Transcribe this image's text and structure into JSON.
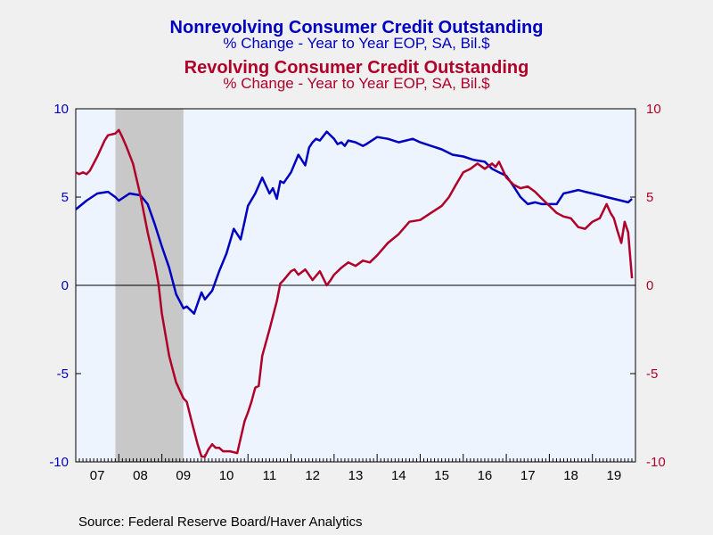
{
  "titles": {
    "series1_title": "Nonrevolving Consumer Credit Outstanding",
    "series1_subtitle": "% Change - Year to Year     EOP, SA, Bil.$",
    "series2_title": "Revolving Consumer Credit Outstanding",
    "series2_subtitle": "% Change - Year to Year     EOP, SA, Bil.$"
  },
  "source": "Source:  Federal Reserve Board/Haver Analytics",
  "colors": {
    "nonrevolving": "#0000c0",
    "revolving": "#b0002a",
    "plot_background": "#eef4fd",
    "recession": "#c8c8c8"
  },
  "chart_data": {
    "type": "line",
    "x_range": [
      2007.0,
      2020.0
    ],
    "ylim": [
      -10,
      10
    ],
    "yticks": [
      10,
      5,
      0,
      -5,
      -10
    ],
    "ytick_labels_left": [
      "10",
      "5",
      "0",
      "-5",
      "-10"
    ],
    "ytick_labels_right": [
      "10",
      "5",
      "0",
      "-5",
      "-10"
    ],
    "xtick_labels": [
      "07",
      "08",
      "09",
      "10",
      "11",
      "12",
      "13",
      "14",
      "15",
      "16",
      "17",
      "18",
      "19"
    ],
    "recession": [
      2007.92,
      2009.5
    ],
    "zero_line": true,
    "series": [
      {
        "key": "nonrevolving",
        "x": [
          2007.0,
          2007.25,
          2007.5,
          2007.75,
          2007.92,
          2008.0,
          2008.25,
          2008.5,
          2008.67,
          2008.83,
          2009.0,
          2009.17,
          2009.33,
          2009.5,
          2009.58,
          2009.75,
          2009.92,
          2010.0,
          2010.17,
          2010.33,
          2010.5,
          2010.67,
          2010.83,
          2010.92,
          2011.0,
          2011.17,
          2011.33,
          2011.5,
          2011.58,
          2011.67,
          2011.75,
          2011.83,
          2012.0,
          2012.17,
          2012.33,
          2012.42,
          2012.5,
          2012.58,
          2012.67,
          2012.83,
          2013.0,
          2013.08,
          2013.17,
          2013.25,
          2013.33,
          2013.5,
          2013.67,
          2013.75,
          2014.0,
          2014.25,
          2014.5,
          2014.67,
          2014.83,
          2015.0,
          2015.25,
          2015.5,
          2015.75,
          2016.0,
          2016.25,
          2016.5,
          2016.67,
          2016.83,
          2017.0,
          2017.17,
          2017.33,
          2017.5,
          2017.67,
          2017.83,
          2018.0,
          2018.17,
          2018.33,
          2018.5,
          2018.67,
          2018.83,
          2019.0,
          2019.17,
          2019.33,
          2019.5,
          2019.67,
          2019.83,
          2019.92
        ],
        "y": [
          4.3,
          4.8,
          5.2,
          5.3,
          5.0,
          4.8,
          5.2,
          5.1,
          4.6,
          3.5,
          2.2,
          1.0,
          -0.5,
          -1.3,
          -1.2,
          -1.6,
          -0.4,
          -0.8,
          -0.3,
          0.8,
          1.8,
          3.2,
          2.6,
          3.6,
          4.5,
          5.2,
          6.1,
          5.2,
          5.5,
          4.9,
          5.9,
          5.8,
          6.4,
          7.4,
          6.8,
          7.8,
          8.1,
          8.3,
          8.2,
          8.7,
          8.3,
          8.0,
          8.1,
          7.9,
          8.2,
          8.1,
          7.9,
          8.0,
          8.4,
          8.3,
          8.1,
          8.2,
          8.3,
          8.1,
          7.9,
          7.7,
          7.4,
          7.3,
          7.1,
          7.0,
          6.6,
          6.4,
          6.2,
          5.6,
          5.0,
          4.6,
          4.7,
          4.6,
          4.6,
          4.6,
          5.2,
          5.3,
          5.4,
          5.3,
          5.2,
          5.1,
          5.0,
          4.9,
          4.8,
          4.7,
          4.9
        ]
      },
      {
        "key": "revolving",
        "x": [
          2007.0,
          2007.08,
          2007.17,
          2007.25,
          2007.33,
          2007.5,
          2007.67,
          2007.75,
          2007.92,
          2008.0,
          2008.08,
          2008.17,
          2008.33,
          2008.5,
          2008.67,
          2008.83,
          2008.92,
          2009.0,
          2009.17,
          2009.33,
          2009.5,
          2009.58,
          2009.67,
          2009.83,
          2009.92,
          2010.0,
          2010.08,
          2010.17,
          2010.25,
          2010.33,
          2010.42,
          2010.58,
          2010.75,
          2010.92,
          2011.0,
          2011.08,
          2011.17,
          2011.25,
          2011.33,
          2011.5,
          2011.67,
          2011.75,
          2011.83,
          2012.0,
          2012.08,
          2012.17,
          2012.33,
          2012.5,
          2012.67,
          2012.83,
          2012.92,
          2013.0,
          2013.17,
          2013.33,
          2013.5,
          2013.67,
          2013.83,
          2014.0,
          2014.25,
          2014.5,
          2014.75,
          2015.0,
          2015.25,
          2015.5,
          2015.67,
          2015.83,
          2016.0,
          2016.17,
          2016.33,
          2016.5,
          2016.67,
          2016.75,
          2016.83,
          2017.0,
          2017.17,
          2017.33,
          2017.5,
          2017.67,
          2017.83,
          2018.0,
          2018.17,
          2018.33,
          2018.5,
          2018.67,
          2018.83,
          2019.0,
          2019.17,
          2019.33,
          2019.42,
          2019.5,
          2019.58,
          2019.67,
          2019.75,
          2019.83,
          2019.92
        ],
        "y": [
          6.4,
          6.3,
          6.4,
          6.3,
          6.5,
          7.3,
          8.2,
          8.5,
          8.6,
          8.8,
          8.4,
          7.9,
          6.9,
          5.1,
          3.0,
          1.3,
          0.1,
          -1.6,
          -4.0,
          -5.5,
          -6.4,
          -6.6,
          -7.5,
          -9.0,
          -9.7,
          -9.7,
          -9.3,
          -9.0,
          -9.2,
          -9.2,
          -9.4,
          -9.4,
          -9.5,
          -7.7,
          -7.2,
          -6.6,
          -5.8,
          -5.7,
          -4.0,
          -2.5,
          -0.9,
          0.1,
          0.3,
          0.8,
          0.9,
          0.6,
          0.9,
          0.3,
          0.8,
          0.0,
          0.3,
          0.6,
          1.0,
          1.3,
          1.1,
          1.4,
          1.3,
          1.7,
          2.4,
          2.9,
          3.6,
          3.7,
          4.1,
          4.5,
          5.0,
          5.7,
          6.4,
          6.6,
          6.9,
          6.6,
          6.9,
          6.7,
          7.0,
          6.1,
          5.7,
          5.5,
          5.6,
          5.3,
          4.9,
          4.5,
          4.1,
          3.9,
          3.8,
          3.3,
          3.2,
          3.6,
          3.8,
          4.6,
          4.1,
          3.8,
          3.1,
          2.4,
          3.6,
          3.0,
          0.4
        ]
      }
    ]
  }
}
